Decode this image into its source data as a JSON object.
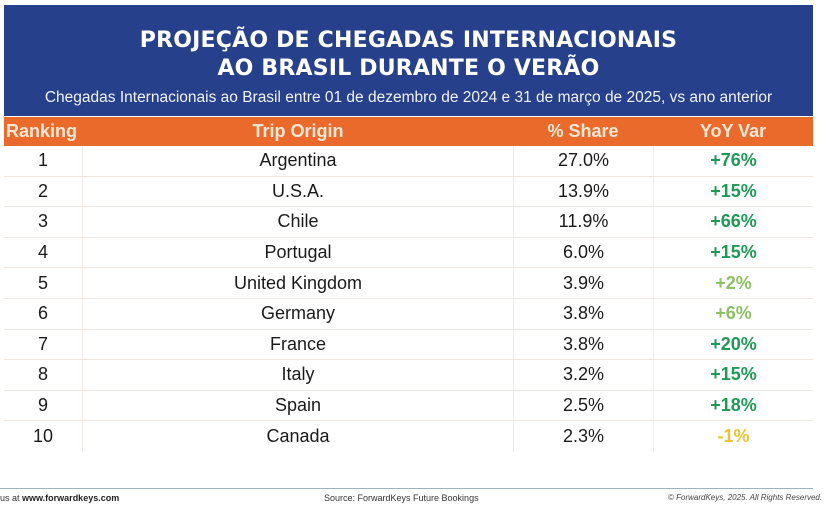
{
  "header": {
    "title_line1": "PROJEÇÃO DE CHEGADAS INTERNACIONAIS",
    "title_line2": "AO BRASIL DURANTE O VERÃO",
    "subtitle": "Chegadas Internacionais ao Brasil entre 01 de dezembro de 2024 e 31 de março de 2025, vs ano anterior"
  },
  "table": {
    "columns": [
      "Ranking",
      "Trip Origin",
      "% Share",
      "YoY Var"
    ],
    "rows": [
      {
        "rank": "1",
        "origin": "Argentina",
        "share": "27.0%",
        "yoy": "+76%",
        "yoy_color": "#1e9a57"
      },
      {
        "rank": "2",
        "origin": "U.S.A.",
        "share": "13.9%",
        "yoy": "+15%",
        "yoy_color": "#1e9a57"
      },
      {
        "rank": "3",
        "origin": "Chile",
        "share": "11.9%",
        "yoy": "+66%",
        "yoy_color": "#1e9a57"
      },
      {
        "rank": "4",
        "origin": "Portugal",
        "share": "6.0%",
        "yoy": "+15%",
        "yoy_color": "#1e9a57"
      },
      {
        "rank": "5",
        "origin": "United Kingdom",
        "share": "3.9%",
        "yoy": "+2%",
        "yoy_color": "#8cc063"
      },
      {
        "rank": "6",
        "origin": "Germany",
        "share": "3.8%",
        "yoy": "+6%",
        "yoy_color": "#8cc063"
      },
      {
        "rank": "7",
        "origin": "France",
        "share": "3.8%",
        "yoy": "+20%",
        "yoy_color": "#1e9a57"
      },
      {
        "rank": "8",
        "origin": "Italy",
        "share": "3.2%",
        "yoy": "+15%",
        "yoy_color": "#1e9a57"
      },
      {
        "rank": "9",
        "origin": "Spain",
        "share": "2.5%",
        "yoy": "+18%",
        "yoy_color": "#1e9a57"
      },
      {
        "rank": "10",
        "origin": "Canada",
        "share": "2.3%",
        "yoy": "-1%",
        "yoy_color": "#f2c12e"
      }
    ]
  },
  "footer": {
    "left_prefix": "us at ",
    "left_link": "www.forwardkeys.com",
    "source": "Source: ForwardKeys Future Bookings",
    "copyright": "© ForwardKeys, 2025. All Rights Reserved."
  },
  "colors": {
    "banner": "#27408b",
    "header_row": "#ea6a2b"
  }
}
